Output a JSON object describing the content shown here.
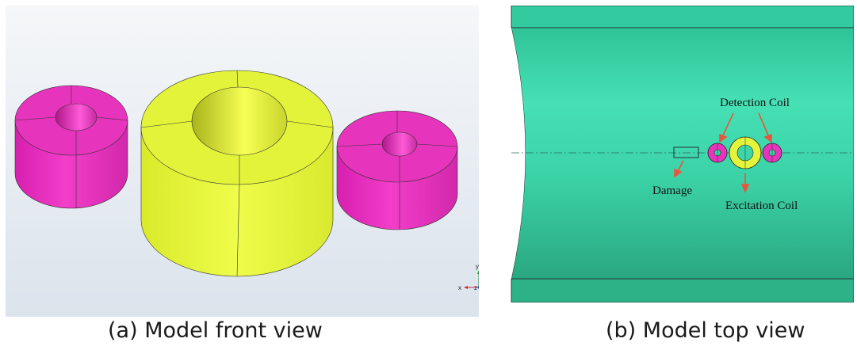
{
  "panel_a": {
    "caption": "(a) Model front view",
    "axes_triad": {
      "x": "x",
      "y": "y",
      "z": "z"
    },
    "colors": {
      "small_coil": "#e834bd",
      "large_coil": "#e3f43b",
      "background_top": "#f4f6f8",
      "background_bottom": "#dee5ee"
    }
  },
  "panel_b": {
    "caption": "(b) Model top view",
    "labels": {
      "detection_coil": "Detection Coil",
      "damage": "Damage",
      "excitation_coil": "Excitation Coil"
    },
    "colors": {
      "pipe": "#3ed6a9",
      "arrow": "#e8553e",
      "detection_coil": "#e834bd",
      "excitation_coil": "#e3f43b"
    }
  }
}
